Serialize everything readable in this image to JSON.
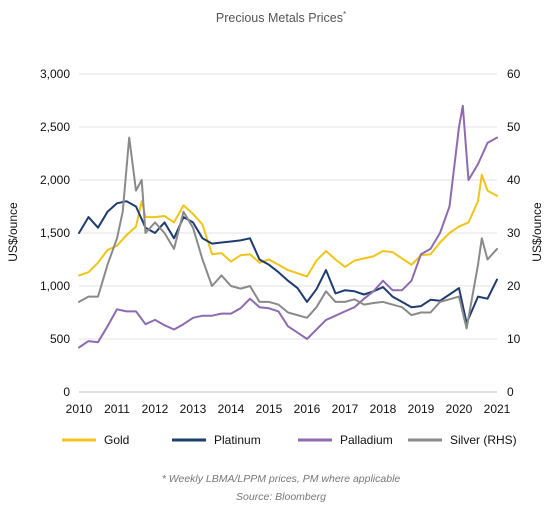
{
  "chart_data": {
    "type": "line",
    "title": "Precious Metals Prices",
    "title_mark": "*",
    "ylabel": "US$/ounce",
    "y_left_ticks": [
      "0",
      "500",
      "1,000",
      "1,500",
      "2,000",
      "2,500",
      "3,000"
    ],
    "y_left_range": [
      0,
      3000
    ],
    "y_right_ticks": [
      "0",
      "10",
      "20",
      "30",
      "40",
      "50",
      "60"
    ],
    "y_right_range": [
      0,
      60
    ],
    "x_ticks": [
      "2010",
      "2011",
      "2012",
      "2013",
      "2014",
      "2015",
      "2016",
      "2017",
      "2018",
      "2019",
      "2020",
      "2021"
    ],
    "x_range": [
      2010,
      2021
    ],
    "grid": "horizontal",
    "legend_position": "bottom",
    "series": [
      {
        "name": "Gold",
        "axis": "left",
        "color": "#f0c419",
        "x": [
          2010.0,
          2010.25,
          2010.5,
          2010.75,
          2011.0,
          2011.25,
          2011.5,
          2011.65,
          2011.75,
          2012.0,
          2012.25,
          2012.5,
          2012.75,
          2013.0,
          2013.25,
          2013.5,
          2013.75,
          2014.0,
          2014.25,
          2014.5,
          2014.75,
          2015.0,
          2015.25,
          2015.5,
          2015.75,
          2016.0,
          2016.25,
          2016.5,
          2016.75,
          2017.0,
          2017.25,
          2017.5,
          2017.75,
          2018.0,
          2018.25,
          2018.5,
          2018.75,
          2019.0,
          2019.25,
          2019.5,
          2019.75,
          2020.0,
          2020.25,
          2020.5,
          2020.6,
          2020.75,
          2021.0
        ],
        "values": [
          1100,
          1130,
          1220,
          1340,
          1380,
          1480,
          1560,
          1800,
          1650,
          1650,
          1660,
          1600,
          1760,
          1680,
          1580,
          1300,
          1310,
          1230,
          1290,
          1300,
          1220,
          1250,
          1200,
          1150,
          1120,
          1090,
          1240,
          1330,
          1250,
          1180,
          1240,
          1260,
          1280,
          1330,
          1320,
          1260,
          1200,
          1290,
          1300,
          1410,
          1500,
          1560,
          1600,
          1800,
          2050,
          1900,
          1850
        ]
      },
      {
        "name": "Platinum",
        "axis": "left",
        "color": "#1f3c6e",
        "x": [
          2010.0,
          2010.25,
          2010.5,
          2010.75,
          2011.0,
          2011.25,
          2011.5,
          2011.75,
          2012.0,
          2012.25,
          2012.5,
          2012.75,
          2013.0,
          2013.25,
          2013.5,
          2013.75,
          2014.0,
          2014.25,
          2014.5,
          2014.75,
          2015.0,
          2015.25,
          2015.5,
          2015.75,
          2016.0,
          2016.25,
          2016.5,
          2016.75,
          2017.0,
          2017.25,
          2017.5,
          2017.75,
          2018.0,
          2018.25,
          2018.5,
          2018.75,
          2019.0,
          2019.25,
          2019.5,
          2019.75,
          2020.0,
          2020.2,
          2020.5,
          2020.75,
          2021.0
        ],
        "values": [
          1500,
          1650,
          1550,
          1700,
          1780,
          1800,
          1750,
          1550,
          1500,
          1600,
          1450,
          1650,
          1600,
          1450,
          1400,
          1410,
          1420,
          1430,
          1450,
          1250,
          1200,
          1130,
          1050,
          980,
          850,
          970,
          1150,
          930,
          960,
          950,
          920,
          950,
          990,
          900,
          850,
          800,
          810,
          870,
          860,
          920,
          980,
          650,
          900,
          880,
          1060
        ]
      },
      {
        "name": "Palladium",
        "axis": "left",
        "color": "#8e6bb0",
        "x": [
          2010.0,
          2010.25,
          2010.5,
          2010.75,
          2011.0,
          2011.25,
          2011.5,
          2011.75,
          2012.0,
          2012.25,
          2012.5,
          2012.75,
          2013.0,
          2013.25,
          2013.5,
          2013.75,
          2014.0,
          2014.25,
          2014.5,
          2014.75,
          2015.0,
          2015.25,
          2015.5,
          2015.75,
          2016.0,
          2016.25,
          2016.5,
          2016.75,
          2017.0,
          2017.25,
          2017.5,
          2017.75,
          2018.0,
          2018.25,
          2018.5,
          2018.75,
          2019.0,
          2019.25,
          2019.5,
          2019.75,
          2020.0,
          2020.1,
          2020.25,
          2020.5,
          2020.75,
          2021.0
        ],
        "values": [
          420,
          480,
          470,
          620,
          780,
          760,
          760,
          640,
          680,
          630,
          590,
          640,
          700,
          720,
          720,
          740,
          740,
          790,
          880,
          800,
          790,
          760,
          620,
          560,
          500,
          590,
          680,
          720,
          760,
          800,
          880,
          950,
          1050,
          960,
          960,
          1050,
          1300,
          1350,
          1500,
          1750,
          2500,
          2700,
          2000,
          2150,
          2350,
          2400
        ]
      },
      {
        "name": "Silver (RHS)",
        "axis": "right",
        "color": "#8a8a8a",
        "x": [
          2010.0,
          2010.25,
          2010.5,
          2010.75,
          2011.0,
          2011.15,
          2011.32,
          2011.5,
          2011.65,
          2011.75,
          2012.0,
          2012.25,
          2012.5,
          2012.75,
          2013.0,
          2013.25,
          2013.5,
          2013.75,
          2014.0,
          2014.25,
          2014.5,
          2014.75,
          2015.0,
          2015.25,
          2015.5,
          2015.75,
          2016.0,
          2016.25,
          2016.5,
          2016.75,
          2017.0,
          2017.25,
          2017.5,
          2017.75,
          2018.0,
          2018.25,
          2018.5,
          2018.75,
          2019.0,
          2019.25,
          2019.5,
          2019.75,
          2020.0,
          2020.2,
          2020.5,
          2020.6,
          2020.75,
          2021.0
        ],
        "values": [
          17,
          18,
          18,
          24,
          29,
          34,
          48,
          38,
          40,
          30,
          32,
          30,
          27,
          34,
          31,
          25,
          20,
          22,
          20,
          19.5,
          20,
          17,
          17,
          16.5,
          15,
          14.5,
          14,
          16,
          19,
          17,
          17,
          17.5,
          16.5,
          16.8,
          17,
          16.5,
          16,
          14.5,
          15,
          15,
          17,
          17.5,
          18,
          12,
          24,
          29,
          25,
          27
        ]
      }
    ],
    "footnote": "* Weekly LBMA/LPPM prices, PM where applicable",
    "source": "Source: Bloomberg"
  }
}
